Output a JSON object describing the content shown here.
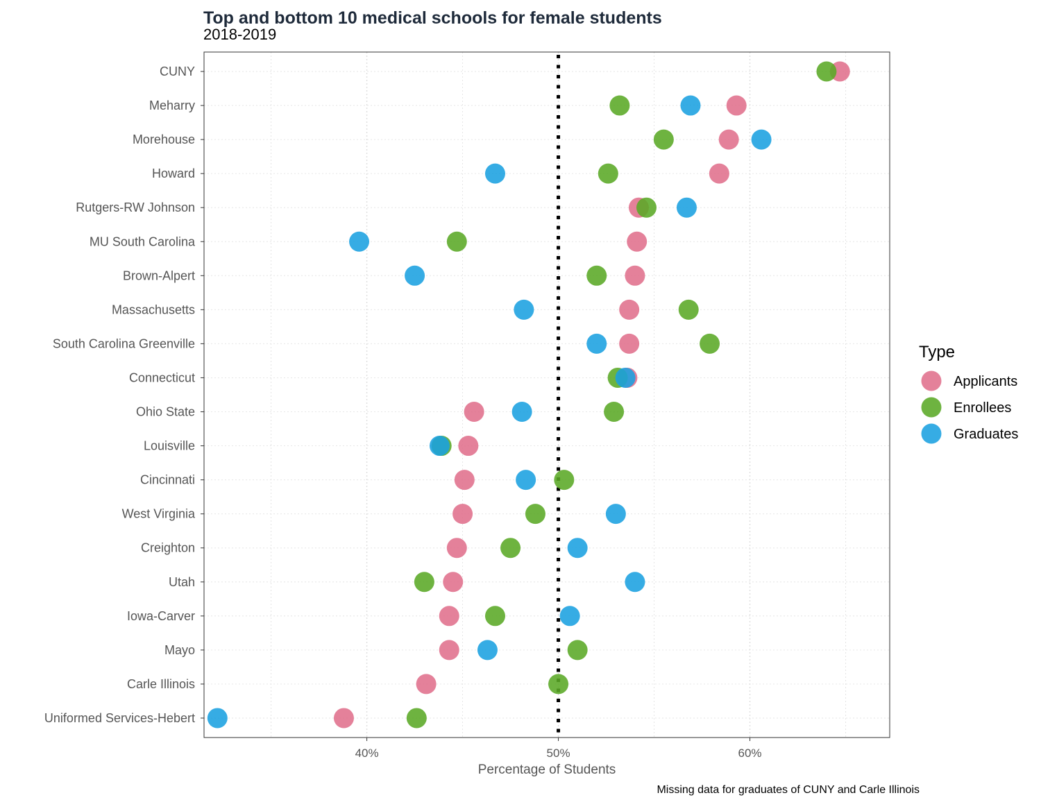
{
  "chart_data": {
    "type": "scatter",
    "title": "Top and bottom 10 medical schools for female students",
    "subtitle": "2018-2019",
    "xlabel": "Percentage of Students",
    "ylabel": "",
    "caption": "Missing data for graduates of CUNY and Carle Illinois",
    "xlim": [
      31.5,
      67.3
    ],
    "xticks": [
      40,
      50,
      60
    ],
    "xtick_labels": [
      "40%",
      "50%",
      "60%"
    ],
    "reference_line": {
      "x": 50,
      "style": "dotted"
    },
    "grid": true,
    "legend": {
      "title": "Type",
      "position": "right"
    },
    "categories": [
      "CUNY",
      "Meharry",
      "Morehouse",
      "Howard",
      "Rutgers-RW Johnson",
      "MU South Carolina",
      "Brown-Alpert",
      "Massachusetts",
      "South Carolina Greenville",
      "Connecticut",
      "Ohio State",
      "Louisville",
      "Cincinnati",
      "West Virginia",
      "Creighton",
      "Utah",
      "Iowa-Carver",
      "Mayo",
      "Carle Illinois",
      "Uniformed Services-Hebert"
    ],
    "series": [
      {
        "name": "Applicants",
        "color": "#e0708c",
        "values": [
          64.7,
          59.3,
          58.9,
          58.4,
          54.2,
          54.1,
          54.0,
          53.7,
          53.7,
          53.6,
          45.6,
          45.3,
          45.1,
          45.0,
          44.7,
          44.5,
          44.3,
          44.3,
          43.1,
          38.8
        ]
      },
      {
        "name": "Enrollees",
        "color": "#5aa826",
        "values": [
          64.0,
          53.2,
          55.5,
          52.6,
          54.6,
          44.7,
          52.0,
          56.8,
          57.9,
          53.1,
          52.9,
          43.9,
          50.3,
          48.8,
          47.5,
          43.0,
          46.7,
          51.0,
          50.0,
          42.6
        ]
      },
      {
        "name": "Graduates",
        "color": "#1aa1e0",
        "values": [
          null,
          56.9,
          60.6,
          46.7,
          56.7,
          39.6,
          42.5,
          48.2,
          52.0,
          53.5,
          48.1,
          43.8,
          48.3,
          53.0,
          51.0,
          54.0,
          50.6,
          46.3,
          null,
          32.2
        ]
      }
    ]
  }
}
